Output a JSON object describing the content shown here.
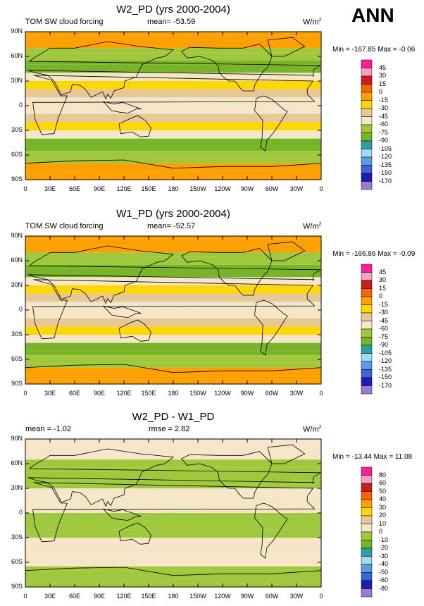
{
  "header": {
    "season": "ANN"
  },
  "panels": [
    {
      "title": "W2_PD (yrs 2000-2004)",
      "left_label": "TOM SW cloud forcing",
      "center_label": "mean= -53.59",
      "units": "W/m",
      "units_sup": "2",
      "minmax": "Min = -167.85 Max =  -0.06",
      "levels": [
        "45",
        "30",
        "15",
        "0",
        "-15",
        "-30",
        "-45",
        "-60",
        "-75",
        "-90",
        "-105",
        "-120",
        "-135",
        "-150",
        "-170"
      ],
      "colors": [
        "#ff1e96",
        "#f5a0c8",
        "#c81e1e",
        "#ff6400",
        "#ffa000",
        "#ffd700",
        "#e6c896",
        "#f5e6c8",
        "#a0c83c",
        "#78b428",
        "#2ca0a0",
        "#a0dcf0",
        "#5a9be1",
        "#3c64dc",
        "#1e1eb4",
        "#a078d2"
      ]
    },
    {
      "title": "W1_PD (yrs 2000-2004)",
      "left_label": "TOM SW cloud forcing",
      "center_label": "mean= -52.57",
      "units": "W/m",
      "units_sup": "2",
      "minmax": "Min = -166.86 Max =  -0.09",
      "levels": [
        "45",
        "30",
        "15",
        "0",
        "-15",
        "-30",
        "-45",
        "-60",
        "-75",
        "-90",
        "-105",
        "-120",
        "-135",
        "-150",
        "-170"
      ],
      "colors": [
        "#ff1e96",
        "#f5a0c8",
        "#c81e1e",
        "#ff6400",
        "#ffa000",
        "#ffd700",
        "#e6c896",
        "#f5e6c8",
        "#a0c83c",
        "#78b428",
        "#2ca0a0",
        "#a0dcf0",
        "#5a9be1",
        "#3c64dc",
        "#1e1eb4",
        "#a078d2"
      ]
    },
    {
      "title": "W2_PD - W1_PD",
      "left_label": "mean =  -1.02",
      "center_label": "rmse =   2.82",
      "units": "W/m",
      "units_sup": "2",
      "minmax": "Min = -13.44 Max =  11.08",
      "levels": [
        "80",
        "60",
        "50",
        "40",
        "30",
        "20",
        "10",
        "0",
        "-10",
        "-20",
        "-30",
        "-40",
        "-50",
        "-60",
        "-80"
      ],
      "colors": [
        "#ff1e96",
        "#f5a0c8",
        "#c81e1e",
        "#ff6400",
        "#ffa000",
        "#ffd700",
        "#e6c896",
        "#f5e6c8",
        "#a0c83c",
        "#78b428",
        "#2ca0a0",
        "#a0dcf0",
        "#5a9be1",
        "#3c64dc",
        "#1e1eb4",
        "#a078d2"
      ]
    }
  ],
  "lat_ticks": [
    "90N",
    "60N",
    "30N",
    "0",
    "30S",
    "60S",
    "90S"
  ],
  "lon_ticks": [
    "0",
    "30E",
    "60E",
    "90E",
    "120E",
    "150E",
    "180",
    "150W",
    "120W",
    "90W",
    "60W",
    "30W",
    "0"
  ],
  "chart_data": [
    {
      "type": "heatmap",
      "title": "W2_PD (yrs 2000-2004)",
      "variable": "TOM SW cloud forcing",
      "units": "W/m2",
      "mean": -53.59,
      "min": -167.85,
      "max": -0.06,
      "xlim": [
        0,
        360
      ],
      "ylim": [
        -90,
        90
      ],
      "contour_levels": [
        45,
        30,
        15,
        0,
        -15,
        -30,
        -45,
        -60,
        -75,
        -90,
        -105,
        -120,
        -135,
        -150,
        -170
      ]
    },
    {
      "type": "heatmap",
      "title": "W1_PD (yrs 2000-2004)",
      "variable": "TOM SW cloud forcing",
      "units": "W/m2",
      "mean": -52.57,
      "min": -166.86,
      "max": -0.09,
      "xlim": [
        0,
        360
      ],
      "ylim": [
        -90,
        90
      ],
      "contour_levels": [
        45,
        30,
        15,
        0,
        -15,
        -30,
        -45,
        -60,
        -75,
        -90,
        -105,
        -120,
        -135,
        -150,
        -170
      ]
    },
    {
      "type": "heatmap",
      "title": "W2_PD - W1_PD",
      "units": "W/m2",
      "mean": -1.02,
      "rmse": 2.82,
      "min": -13.44,
      "max": 11.08,
      "xlim": [
        0,
        360
      ],
      "ylim": [
        -90,
        90
      ],
      "contour_levels": [
        80,
        60,
        50,
        40,
        30,
        20,
        10,
        0,
        -10,
        -20,
        -30,
        -40,
        -50,
        -60,
        -80
      ]
    }
  ]
}
